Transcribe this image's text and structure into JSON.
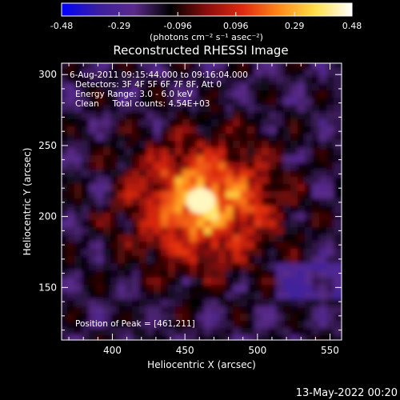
{
  "chart_data": {
    "type": "heatmap",
    "title": "Reconstructed RHESSI Image",
    "colorbar": {
      "min": -0.48,
      "max": 0.48,
      "ticks": [
        "-0.48",
        "-0.29",
        "-0.096",
        "0.096",
        "0.29",
        "0.48"
      ],
      "unit_label": "(photons cm⁻² s⁻¹ asec⁻²)",
      "colormap": [
        "#0000ff",
        "#3a1fa0",
        "#5a2a8a",
        "#000000",
        "#8a0d0d",
        "#e02a10",
        "#ff8a1a",
        "#ffe04a",
        "#ffffff"
      ]
    },
    "xlabel": "Heliocentric X (arcsec)",
    "ylabel": "Heliocentric Y (arcsec)",
    "xlim": [
      365,
      558
    ],
    "ylim": [
      113,
      308
    ],
    "xticks": [
      400,
      450,
      500,
      550
    ],
    "yticks": [
      150,
      200,
      250,
      300
    ],
    "annotations": [
      "6-Aug-2011 09:15:44.000 to 09:16:04.000",
      "Detectors: 3F 4F 5F 6F 7F 8F, Att 0",
      "Energy Range: 3.0 - 6.0 keV",
      "Clean     Total counts: 4.54E+03"
    ],
    "peak_label": "Position of Peak = [461,211]",
    "peak": [
      461,
      211
    ],
    "footer_date": "13-May-2022 00:20"
  }
}
